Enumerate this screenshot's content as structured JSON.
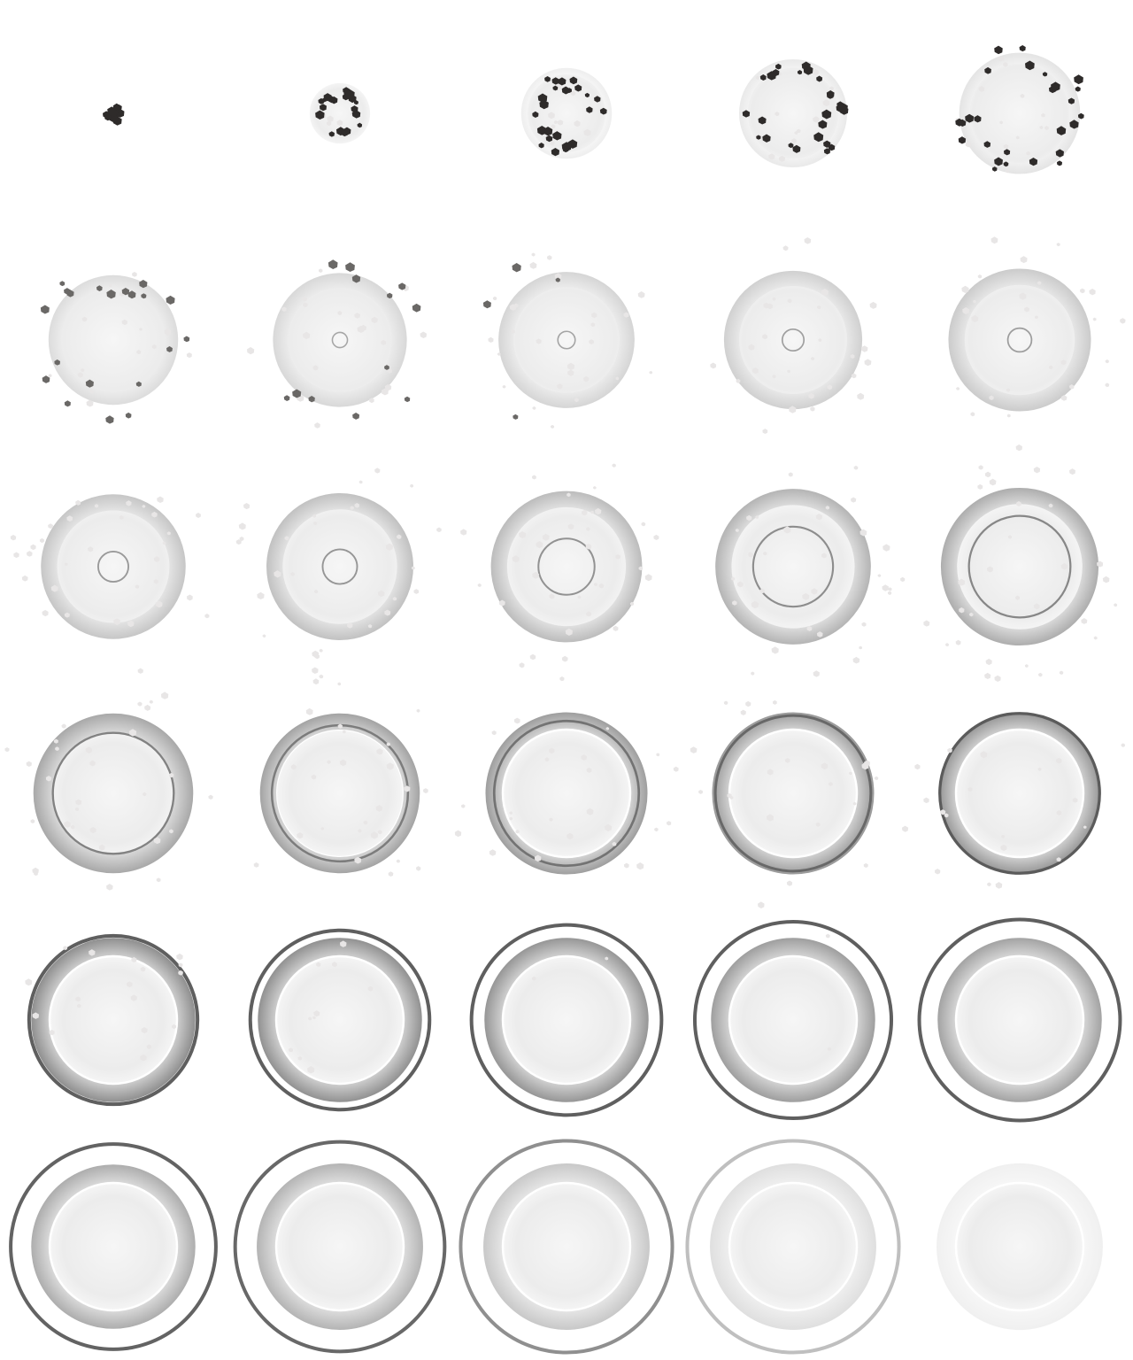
{
  "sprite_sheet": {
    "columns": 5,
    "rows": 6,
    "background": "#ffffff",
    "colors": {
      "debris_dark": "#2e2b2a",
      "debris_mid": "#6a6866",
      "debris_light": "#e8e6e6",
      "halo": "#ececec",
      "ring_gray": "#a8a8a8",
      "outer_ring": "#5a5856"
    },
    "frames": [
      {
        "halo": 0.0,
        "ring_outer": 0.0,
        "ring_inner": 0.0,
        "ring_strength": 0.0,
        "line": 0.0,
        "line_strength": 0.0,
        "shock": 0.0,
        "shock_strength": 0.0,
        "dark_debris": 18,
        "dark_spread": 0.09,
        "light_debris": 0,
        "light_spread": 0.0,
        "opacity": 1.0
      },
      {
        "halo": 0.28,
        "ring_outer": 0.0,
        "ring_inner": 0.0,
        "ring_strength": 0.0,
        "line": 0.0,
        "line_strength": 0.0,
        "shock": 0.0,
        "shock_strength": 0.0,
        "dark_debris": 22,
        "dark_spread": 0.22,
        "light_debris": 6,
        "light_spread": 0.25,
        "opacity": 1.0
      },
      {
        "halo": 0.4,
        "ring_outer": 0.42,
        "ring_inner": 0.36,
        "ring_strength": 0.1,
        "line": 0.0,
        "line_strength": 0.0,
        "shock": 0.0,
        "shock_strength": 0.0,
        "dark_debris": 24,
        "dark_spread": 0.38,
        "light_debris": 10,
        "light_spread": 0.4,
        "opacity": 1.0
      },
      {
        "halo": 0.48,
        "ring_outer": 0.5,
        "ring_inner": 0.42,
        "ring_strength": 0.14,
        "line": 0.0,
        "line_strength": 0.0,
        "shock": 0.0,
        "shock_strength": 0.0,
        "dark_debris": 26,
        "dark_spread": 0.52,
        "light_debris": 12,
        "light_spread": 0.5,
        "opacity": 1.0
      },
      {
        "halo": 0.54,
        "ring_outer": 0.56,
        "ring_inner": 0.46,
        "ring_strength": 0.18,
        "line": 0.0,
        "line_strength": 0.0,
        "shock": 0.0,
        "shock_strength": 0.0,
        "dark_debris": 26,
        "dark_spread": 0.64,
        "light_debris": 14,
        "light_spread": 0.62,
        "opacity": 1.0
      },
      {
        "halo": 0.58,
        "ring_outer": 0.6,
        "ring_inner": 0.47,
        "ring_strength": 0.24,
        "line": 0.0,
        "line_strength": 0.0,
        "shock": 0.0,
        "shock_strength": 0.0,
        "dark_debris": 20,
        "dark_spread": 0.76,
        "light_debris": 16,
        "light_spread": 0.74,
        "opacity": 1.0
      },
      {
        "halo": 0.58,
        "ring_outer": 0.62,
        "ring_inner": 0.48,
        "ring_strength": 0.27,
        "line": 0.07,
        "line_strength": 0.22,
        "shock": 0.0,
        "shock_strength": 0.0,
        "dark_debris": 12,
        "dark_spread": 0.86,
        "light_debris": 22,
        "light_spread": 0.84,
        "opacity": 1.0
      },
      {
        "halo": 0.58,
        "ring_outer": 0.63,
        "ring_inner": 0.49,
        "ring_strength": 0.3,
        "line": 0.08,
        "line_strength": 0.24,
        "shock": 0.0,
        "shock_strength": 0.0,
        "dark_debris": 4,
        "dark_spread": 0.92,
        "light_debris": 26,
        "light_spread": 0.92,
        "opacity": 1.0
      },
      {
        "halo": 0.58,
        "ring_outer": 0.64,
        "ring_inner": 0.5,
        "ring_strength": 0.34,
        "line": 0.1,
        "line_strength": 0.28,
        "shock": 0.0,
        "shock_strength": 0.0,
        "dark_debris": 0,
        "dark_spread": 0.0,
        "light_debris": 28,
        "light_spread": 0.96,
        "opacity": 1.0
      },
      {
        "halo": 0.58,
        "ring_outer": 0.66,
        "ring_inner": 0.51,
        "ring_strength": 0.38,
        "line": 0.11,
        "line_strength": 0.3,
        "shock": 0.0,
        "shock_strength": 0.0,
        "dark_debris": 0,
        "dark_spread": 0.0,
        "light_debris": 28,
        "light_spread": 1.0,
        "opacity": 1.0
      },
      {
        "halo": 0.58,
        "ring_outer": 0.67,
        "ring_inner": 0.52,
        "ring_strength": 0.42,
        "line": 0.14,
        "line_strength": 0.34,
        "shock": 0.0,
        "shock_strength": 0.0,
        "dark_debris": 0,
        "dark_spread": 0.0,
        "light_debris": 32,
        "light_spread": 1.04,
        "opacity": 1.0
      },
      {
        "halo": 0.58,
        "ring_outer": 0.68,
        "ring_inner": 0.53,
        "ring_strength": 0.46,
        "line": 0.16,
        "line_strength": 0.36,
        "shock": 0.0,
        "shock_strength": 0.0,
        "dark_debris": 0,
        "dark_spread": 0.0,
        "light_debris": 32,
        "light_spread": 1.06,
        "opacity": 1.0
      },
      {
        "halo": 0.58,
        "ring_outer": 0.7,
        "ring_inner": 0.55,
        "ring_strength": 0.5,
        "line": 0.26,
        "line_strength": 0.4,
        "shock": 0.0,
        "shock_strength": 0.0,
        "dark_debris": 0,
        "dark_spread": 0.0,
        "light_debris": 34,
        "light_spread": 1.08,
        "opacity": 1.0
      },
      {
        "halo": 0.58,
        "ring_outer": 0.72,
        "ring_inner": 0.57,
        "ring_strength": 0.56,
        "line": 0.37,
        "line_strength": 0.45,
        "shock": 0.0,
        "shock_strength": 0.0,
        "dark_debris": 0,
        "dark_spread": 0.0,
        "light_debris": 34,
        "light_spread": 1.1,
        "opacity": 1.0
      },
      {
        "halo": 0.58,
        "ring_outer": 0.73,
        "ring_inner": 0.58,
        "ring_strength": 0.62,
        "line": 0.47,
        "line_strength": 0.5,
        "shock": 0.0,
        "shock_strength": 0.0,
        "dark_debris": 0,
        "dark_spread": 0.0,
        "light_debris": 30,
        "light_spread": 1.1,
        "opacity": 1.0
      },
      {
        "halo": 0.58,
        "ring_outer": 0.74,
        "ring_inner": 0.57,
        "ring_strength": 0.66,
        "line": 0.56,
        "line_strength": 0.55,
        "shock": 0.0,
        "shock_strength": 0.0,
        "dark_debris": 0,
        "dark_spread": 0.0,
        "light_debris": 30,
        "light_spread": 1.1,
        "opacity": 1.0
      },
      {
        "halo": 0.58,
        "ring_outer": 0.74,
        "ring_inner": 0.59,
        "ring_strength": 0.7,
        "line": 0.63,
        "line_strength": 0.6,
        "shock": 0.0,
        "shock_strength": 0.0,
        "dark_debris": 0,
        "dark_spread": 0.0,
        "light_debris": 28,
        "light_spread": 1.1,
        "opacity": 1.0
      },
      {
        "halo": 0.58,
        "ring_outer": 0.75,
        "ring_inner": 0.6,
        "ring_strength": 0.74,
        "line": 0.67,
        "line_strength": 0.68,
        "shock": 0.0,
        "shock_strength": 0.0,
        "dark_debris": 0,
        "dark_spread": 0.0,
        "light_debris": 26,
        "light_spread": 1.1,
        "opacity": 1.0
      },
      {
        "halo": 0.58,
        "ring_outer": 0.75,
        "ring_inner": 0.6,
        "ring_strength": 0.78,
        "line": 0.72,
        "line_strength": 0.78,
        "shock": 0.0,
        "shock_strength": 0.0,
        "dark_debris": 0,
        "dark_spread": 0.0,
        "light_debris": 24,
        "light_spread": 1.1,
        "opacity": 1.0
      },
      {
        "halo": 0.58,
        "ring_outer": 0.75,
        "ring_inner": 0.6,
        "ring_strength": 0.82,
        "line": 0.74,
        "line_strength": 0.9,
        "shock": 0.0,
        "shock_strength": 0.0,
        "dark_debris": 0,
        "dark_spread": 0.0,
        "light_debris": 20,
        "light_spread": 1.1,
        "opacity": 1.0
      },
      {
        "halo": 0.58,
        "ring_outer": 0.76,
        "ring_inner": 0.6,
        "ring_strength": 0.86,
        "line": 0.0,
        "line_strength": 0.0,
        "shock": 0.78,
        "shock_strength": 0.95,
        "dark_debris": 0,
        "dark_spread": 0.0,
        "light_debris": 18,
        "light_spread": 0.9,
        "opacity": 1.0
      },
      {
        "halo": 0.58,
        "ring_outer": 0.76,
        "ring_inner": 0.6,
        "ring_strength": 0.84,
        "line": 0.0,
        "line_strength": 0.0,
        "shock": 0.83,
        "shock_strength": 0.95,
        "dark_debris": 0,
        "dark_spread": 0.0,
        "light_debris": 10,
        "light_spread": 0.85,
        "opacity": 1.0
      },
      {
        "halo": 0.58,
        "ring_outer": 0.76,
        "ring_inner": 0.6,
        "ring_strength": 0.8,
        "line": 0.0,
        "line_strength": 0.0,
        "shock": 0.88,
        "shock_strength": 0.95,
        "dark_debris": 0,
        "dark_spread": 0.0,
        "light_debris": 2,
        "light_spread": 0.85,
        "opacity": 1.0
      },
      {
        "halo": 0.58,
        "ring_outer": 0.76,
        "ring_inner": 0.6,
        "ring_strength": 0.74,
        "line": 0.0,
        "line_strength": 0.0,
        "shock": 0.91,
        "shock_strength": 0.95,
        "dark_debris": 0,
        "dark_spread": 0.0,
        "light_debris": 2,
        "light_spread": 0.85,
        "opacity": 1.0
      },
      {
        "halo": 0.58,
        "ring_outer": 0.76,
        "ring_inner": 0.6,
        "ring_strength": 0.7,
        "line": 0.0,
        "line_strength": 0.0,
        "shock": 0.93,
        "shock_strength": 0.95,
        "dark_debris": 0,
        "dark_spread": 0.0,
        "light_debris": 0,
        "light_spread": 0.0,
        "opacity": 1.0
      },
      {
        "halo": 0.58,
        "ring_outer": 0.76,
        "ring_inner": 0.6,
        "ring_strength": 0.62,
        "line": 0.0,
        "line_strength": 0.0,
        "shock": 0.95,
        "shock_strength": 0.92,
        "dark_debris": 0,
        "dark_spread": 0.0,
        "light_debris": 0,
        "light_spread": 0.0,
        "opacity": 1.0
      },
      {
        "halo": 0.58,
        "ring_outer": 0.77,
        "ring_inner": 0.6,
        "ring_strength": 0.56,
        "line": 0.0,
        "line_strength": 0.0,
        "shock": 0.97,
        "shock_strength": 0.88,
        "dark_debris": 0,
        "dark_spread": 0.0,
        "light_debris": 0,
        "light_spread": 0.0,
        "opacity": 1.0
      },
      {
        "halo": 0.58,
        "ring_outer": 0.77,
        "ring_inner": 0.6,
        "ring_strength": 0.4,
        "line": 0.0,
        "line_strength": 0.0,
        "shock": 0.98,
        "shock_strength": 0.6,
        "dark_debris": 0,
        "dark_spread": 0.0,
        "light_debris": 0,
        "light_spread": 0.0,
        "opacity": 1.0
      },
      {
        "halo": 0.58,
        "ring_outer": 0.77,
        "ring_inner": 0.6,
        "ring_strength": 0.22,
        "line": 0.0,
        "line_strength": 0.0,
        "shock": 0.98,
        "shock_strength": 0.25,
        "dark_debris": 0,
        "dark_spread": 0.0,
        "light_debris": 0,
        "light_spread": 0.0,
        "opacity": 1.0
      },
      {
        "halo": 0.58,
        "ring_outer": 0.77,
        "ring_inner": 0.6,
        "ring_strength": 0.08,
        "line": 0.0,
        "line_strength": 0.0,
        "shock": 0.0,
        "shock_strength": 0.0,
        "dark_debris": 0,
        "dark_spread": 0.0,
        "light_debris": 0,
        "light_spread": 0.0,
        "opacity": 1.0
      }
    ]
  }
}
